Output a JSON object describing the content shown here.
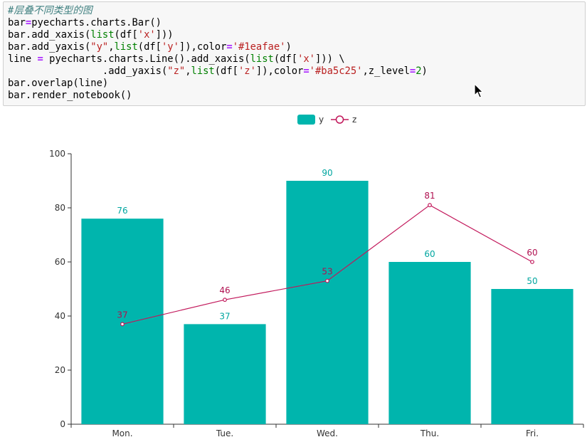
{
  "code_cell": {
    "lines": [
      [
        {
          "t": "#层叠不同类型的图",
          "c": "tok-comment"
        }
      ],
      [
        {
          "t": "bar"
        },
        {
          "t": "=",
          "c": "tok-op"
        },
        {
          "t": "pyecharts.charts.Bar()"
        }
      ],
      [
        {
          "t": "bar.add_xaxis("
        },
        {
          "t": "list",
          "c": "tok-builtin"
        },
        {
          "t": "(df["
        },
        {
          "t": "'x'",
          "c": "tok-str"
        },
        {
          "t": "]))"
        }
      ],
      [
        {
          "t": "bar.add_yaxis("
        },
        {
          "t": "\"y\"",
          "c": "tok-str"
        },
        {
          "t": ","
        },
        {
          "t": "list",
          "c": "tok-builtin"
        },
        {
          "t": "(df["
        },
        {
          "t": "'y'",
          "c": "tok-str"
        },
        {
          "t": "]),color"
        },
        {
          "t": "=",
          "c": "tok-op"
        },
        {
          "t": "'#1eafae'",
          "c": "tok-str"
        },
        {
          "t": ")"
        }
      ],
      [
        {
          "t": "line "
        },
        {
          "t": "=",
          "c": "tok-op"
        },
        {
          "t": " pyecharts.charts.Line().add_xaxis("
        },
        {
          "t": "list",
          "c": "tok-builtin"
        },
        {
          "t": "(df["
        },
        {
          "t": "'x'",
          "c": "tok-str"
        },
        {
          "t": "])) \\"
        }
      ],
      [
        {
          "t": "                .add_yaxis("
        },
        {
          "t": "\"z\"",
          "c": "tok-str"
        },
        {
          "t": ","
        },
        {
          "t": "list",
          "c": "tok-builtin"
        },
        {
          "t": "(df["
        },
        {
          "t": "'z'",
          "c": "tok-str"
        },
        {
          "t": "]),color"
        },
        {
          "t": "=",
          "c": "tok-op"
        },
        {
          "t": "'#ba5c25'",
          "c": "tok-str"
        },
        {
          "t": ",z_level"
        },
        {
          "t": "=",
          "c": "tok-op"
        },
        {
          "t": "2",
          "c": "tok-num"
        },
        {
          "t": ")"
        }
      ],
      [
        {
          "t": "bar.overlap(line)"
        }
      ],
      [
        {
          "t": "bar.render_notebook()"
        }
      ]
    ]
  },
  "colors": {
    "bar": "#00b5ad",
    "line": "#c2185b",
    "axis": "#333333",
    "label_bar": "#00a6a0",
    "label_line": "#b01050"
  },
  "chart_data": {
    "type": "bar",
    "title": "",
    "xlabel": "",
    "ylabel": "",
    "categories": [
      "Mon.",
      "Tue.",
      "Wed.",
      "Thu.",
      "Fri."
    ],
    "ylim": [
      0,
      100
    ],
    "yticks": [
      0,
      20,
      40,
      60,
      80,
      100
    ],
    "grid": false,
    "legend_position": "top-center",
    "series": [
      {
        "name": "y",
        "type": "bar",
        "values": [
          76,
          37,
          90,
          60,
          50
        ]
      },
      {
        "name": "z",
        "type": "line",
        "values": [
          37,
          46,
          53,
          81,
          60
        ]
      }
    ]
  }
}
